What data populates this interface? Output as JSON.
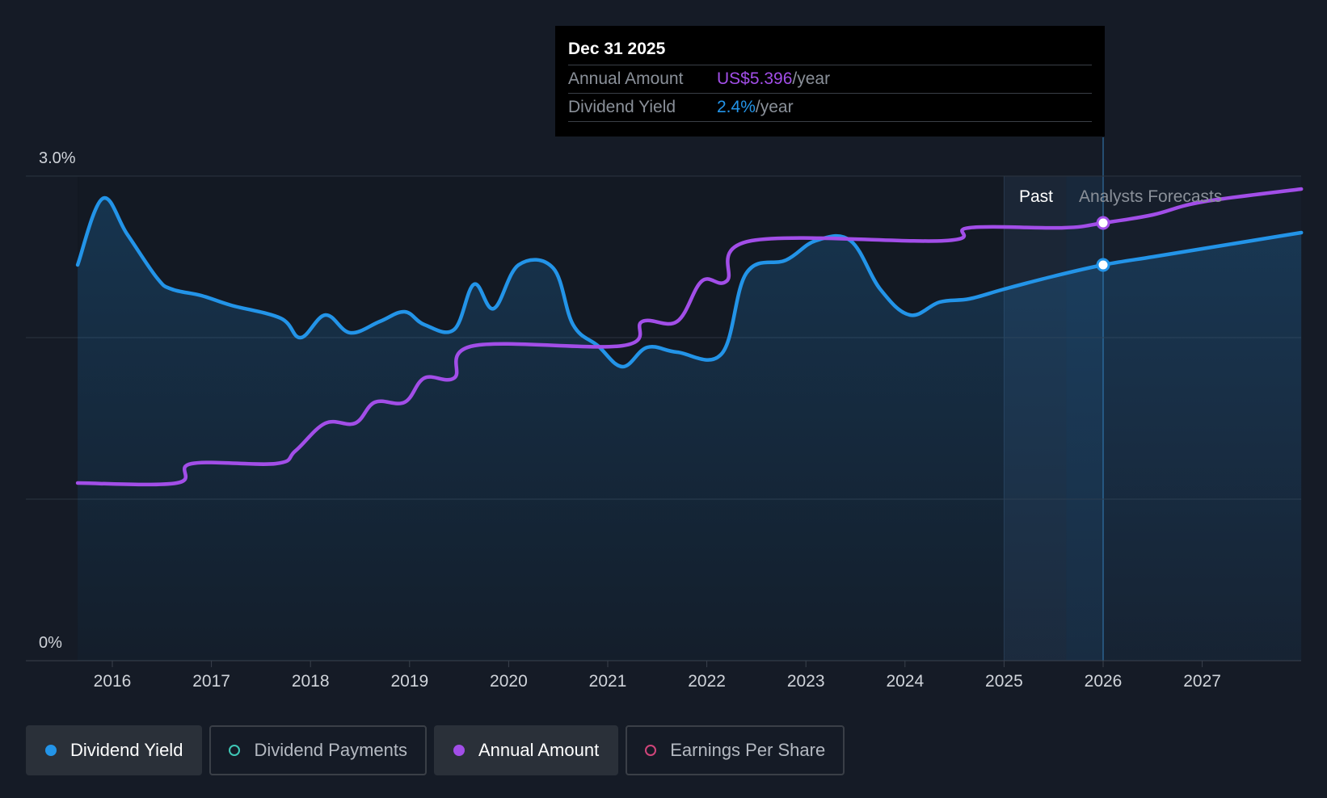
{
  "chart_data": {
    "type": "line",
    "ylim_yield": [
      0,
      3.0
    ],
    "y_tick_labels": [
      "3.0%",
      "0%"
    ],
    "x_tick_labels": [
      "2016",
      "2017",
      "2018",
      "2019",
      "2020",
      "2021",
      "2022",
      "2023",
      "2024",
      "2025",
      "2026",
      "2027"
    ],
    "xlim": [
      2015.5,
      2028.0
    ],
    "past_label": "Past",
    "forecast_label": "Analysts Forecasts",
    "forecast_start": 2025.0,
    "highlight_x": 2026.0,
    "series": [
      {
        "name": "Dividend Yield",
        "unit": "%",
        "color": "#2394e8",
        "points": [
          [
            2015.65,
            2.45
          ],
          [
            2015.9,
            2.86
          ],
          [
            2016.15,
            2.64
          ],
          [
            2016.45,
            2.37
          ],
          [
            2016.6,
            2.3
          ],
          [
            2016.9,
            2.26
          ],
          [
            2017.2,
            2.2
          ],
          [
            2017.7,
            2.12
          ],
          [
            2017.9,
            2.0
          ],
          [
            2018.15,
            2.14
          ],
          [
            2018.4,
            2.03
          ],
          [
            2018.7,
            2.1
          ],
          [
            2018.95,
            2.16
          ],
          [
            2019.15,
            2.08
          ],
          [
            2019.45,
            2.05
          ],
          [
            2019.65,
            2.33
          ],
          [
            2019.85,
            2.18
          ],
          [
            2020.1,
            2.45
          ],
          [
            2020.45,
            2.43
          ],
          [
            2020.65,
            2.08
          ],
          [
            2020.9,
            1.95
          ],
          [
            2021.15,
            1.82
          ],
          [
            2021.4,
            1.94
          ],
          [
            2021.7,
            1.91
          ],
          [
            2022.15,
            1.9
          ],
          [
            2022.4,
            2.4
          ],
          [
            2022.8,
            2.48
          ],
          [
            2023.1,
            2.6
          ],
          [
            2023.45,
            2.6
          ],
          [
            2023.75,
            2.3
          ],
          [
            2024.05,
            2.14
          ],
          [
            2024.35,
            2.22
          ],
          [
            2024.65,
            2.24
          ],
          [
            2025.0,
            2.3
          ],
          [
            2025.5,
            2.38
          ],
          [
            2026.0,
            2.45
          ],
          [
            2026.5,
            2.5
          ],
          [
            2027.0,
            2.55
          ],
          [
            2027.5,
            2.6
          ],
          [
            2028.0,
            2.65
          ]
        ]
      },
      {
        "name": "Annual Amount",
        "unit": "US$",
        "color": "#a24ee8",
        "points": [
          [
            2015.65,
            1.1
          ],
          [
            2016.65,
            1.1
          ],
          [
            2016.8,
            1.22
          ],
          [
            2017.65,
            1.22
          ],
          [
            2017.85,
            1.3
          ],
          [
            2018.15,
            1.47
          ],
          [
            2018.45,
            1.47
          ],
          [
            2018.65,
            1.6
          ],
          [
            2018.95,
            1.6
          ],
          [
            2019.15,
            1.75
          ],
          [
            2019.45,
            1.75
          ],
          [
            2019.65,
            1.95
          ],
          [
            2021.15,
            1.95
          ],
          [
            2021.35,
            2.1
          ],
          [
            2021.7,
            2.1
          ],
          [
            2021.95,
            2.35
          ],
          [
            2022.2,
            2.35
          ],
          [
            2022.45,
            2.6
          ],
          [
            2024.4,
            2.6
          ],
          [
            2024.65,
            2.68
          ],
          [
            2025.6,
            2.68
          ],
          [
            2026.0,
            2.71
          ],
          [
            2026.5,
            2.76
          ],
          [
            2027.0,
            2.84
          ],
          [
            2028.0,
            2.92
          ]
        ]
      }
    ]
  },
  "tooltip": {
    "date": "Dec 31 2025",
    "annual_label": "Annual Amount",
    "annual_value": "US$5.396",
    "annual_unit": "/year",
    "yield_label": "Dividend Yield",
    "yield_value": "2.4%",
    "yield_unit": "/year"
  },
  "legend": [
    {
      "label": "Dividend Yield",
      "color": "#2394e8",
      "active": true,
      "filled": true
    },
    {
      "label": "Dividend Payments",
      "color": "#3fc7b6",
      "active": false,
      "filled": false
    },
    {
      "label": "Annual Amount",
      "color": "#a24ee8",
      "active": true,
      "filled": true
    },
    {
      "label": "Earnings Per Share",
      "color": "#d0457a",
      "active": false,
      "filled": false
    }
  ],
  "colors": {
    "background": "#151b26",
    "grid": "#2c3440",
    "past_band": "#1c2838",
    "forecast_band": "#18283b"
  }
}
